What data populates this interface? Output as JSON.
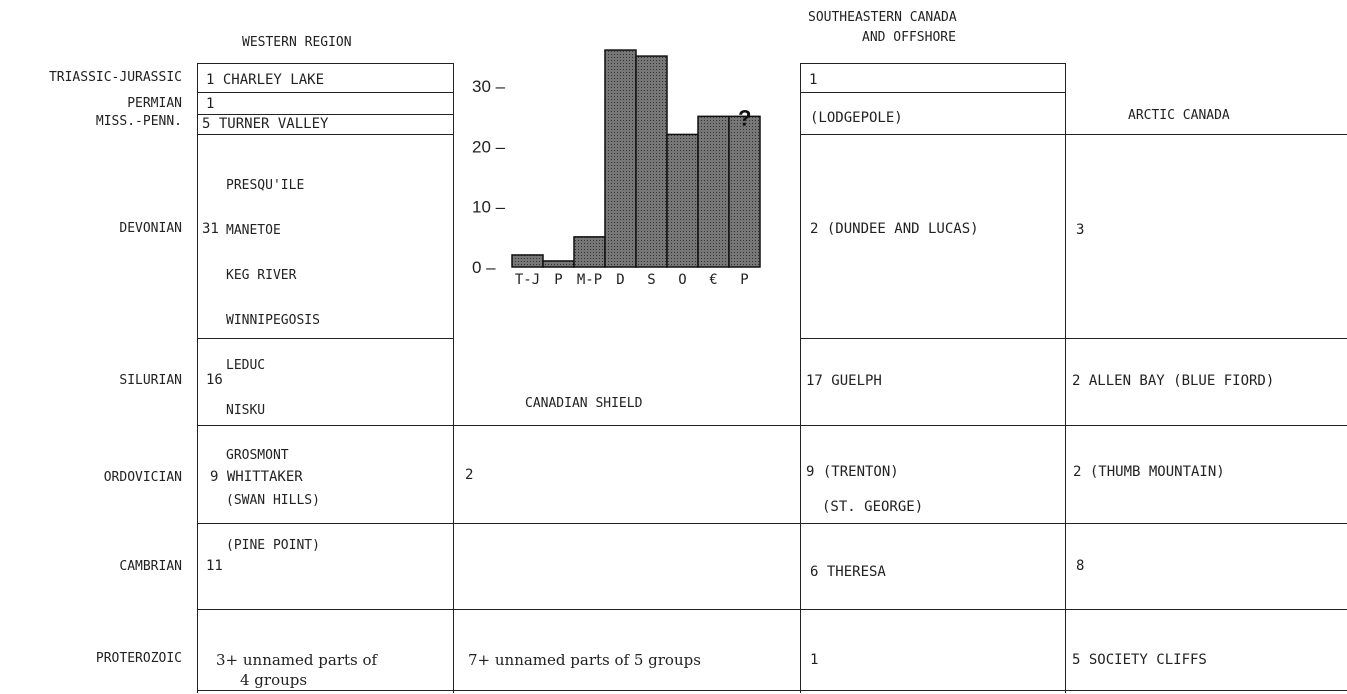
{
  "headers": {
    "western": "WESTERN REGION",
    "southeastern_l1": "SOUTHEASTERN CANADA",
    "southeastern_l2": "AND OFFSHORE",
    "arctic": "ARCTIC CANADA",
    "shield": "CANADIAN SHIELD"
  },
  "periods": {
    "triassic_jurassic": "TRIASSIC-JURASSIC",
    "permian": "PERMIAN",
    "miss_penn": "MISS.-PENN.",
    "devonian": "DEVONIAN",
    "silurian": "SILURIAN",
    "ordovician": "ORDOVICIAN",
    "cambrian": "CAMBRIAN",
    "proterozoic": "PROTEROZOIC"
  },
  "western": {
    "tj": "1 CHARLEY LAKE",
    "permian": "1",
    "mp": "5 TURNER VALLEY",
    "devonian_count": "31",
    "devonian_units": [
      "PRESQU'ILE",
      "MANETOE",
      "KEG RIVER",
      "WINNIPEGOSIS",
      "LEDUC",
      "NISKU",
      "GROSMONT",
      "(SWAN HILLS)",
      "(PINE POINT)"
    ],
    "silurian": "16",
    "ordovician": "9 WHITTAKER",
    "cambrian": "11",
    "proterozoic_l1": "3+ unnamed parts of",
    "proterozoic_l2": "4 groups"
  },
  "shield": {
    "ordovician": "2",
    "proterozoic": "7+ unnamed parts of 5 groups"
  },
  "southeastern": {
    "tj": "1",
    "mp": "(LODGEPOLE)",
    "devonian": "2 (DUNDEE AND LUCAS)",
    "silurian": "17 GUELPH",
    "ordovician_l1": "9 (TRENTON)",
    "ordovician_l2": "(ST. GEORGE)",
    "cambrian": "6 THERESA",
    "proterozoic": "1"
  },
  "arctic": {
    "devonian": "3",
    "silurian": "2 ALLEN BAY (BLUE FIORD)",
    "ordovician": "2 (THUMB MOUNTAIN)",
    "cambrian": "8",
    "proterozoic": "5 SOCIETY CLIFFS"
  },
  "chart_data": {
    "type": "bar",
    "categories": [
      "T-J",
      "P",
      "M-P",
      "D",
      "S",
      "O",
      "€",
      "P"
    ],
    "values": [
      2,
      1,
      5,
      36,
      35,
      22,
      25,
      25
    ],
    "uncertain_marker": "?",
    "y_ticks": [
      "0",
      "10",
      "20",
      "30"
    ],
    "ylim": [
      0,
      38
    ],
    "bar_color": "#6b6b6b"
  }
}
